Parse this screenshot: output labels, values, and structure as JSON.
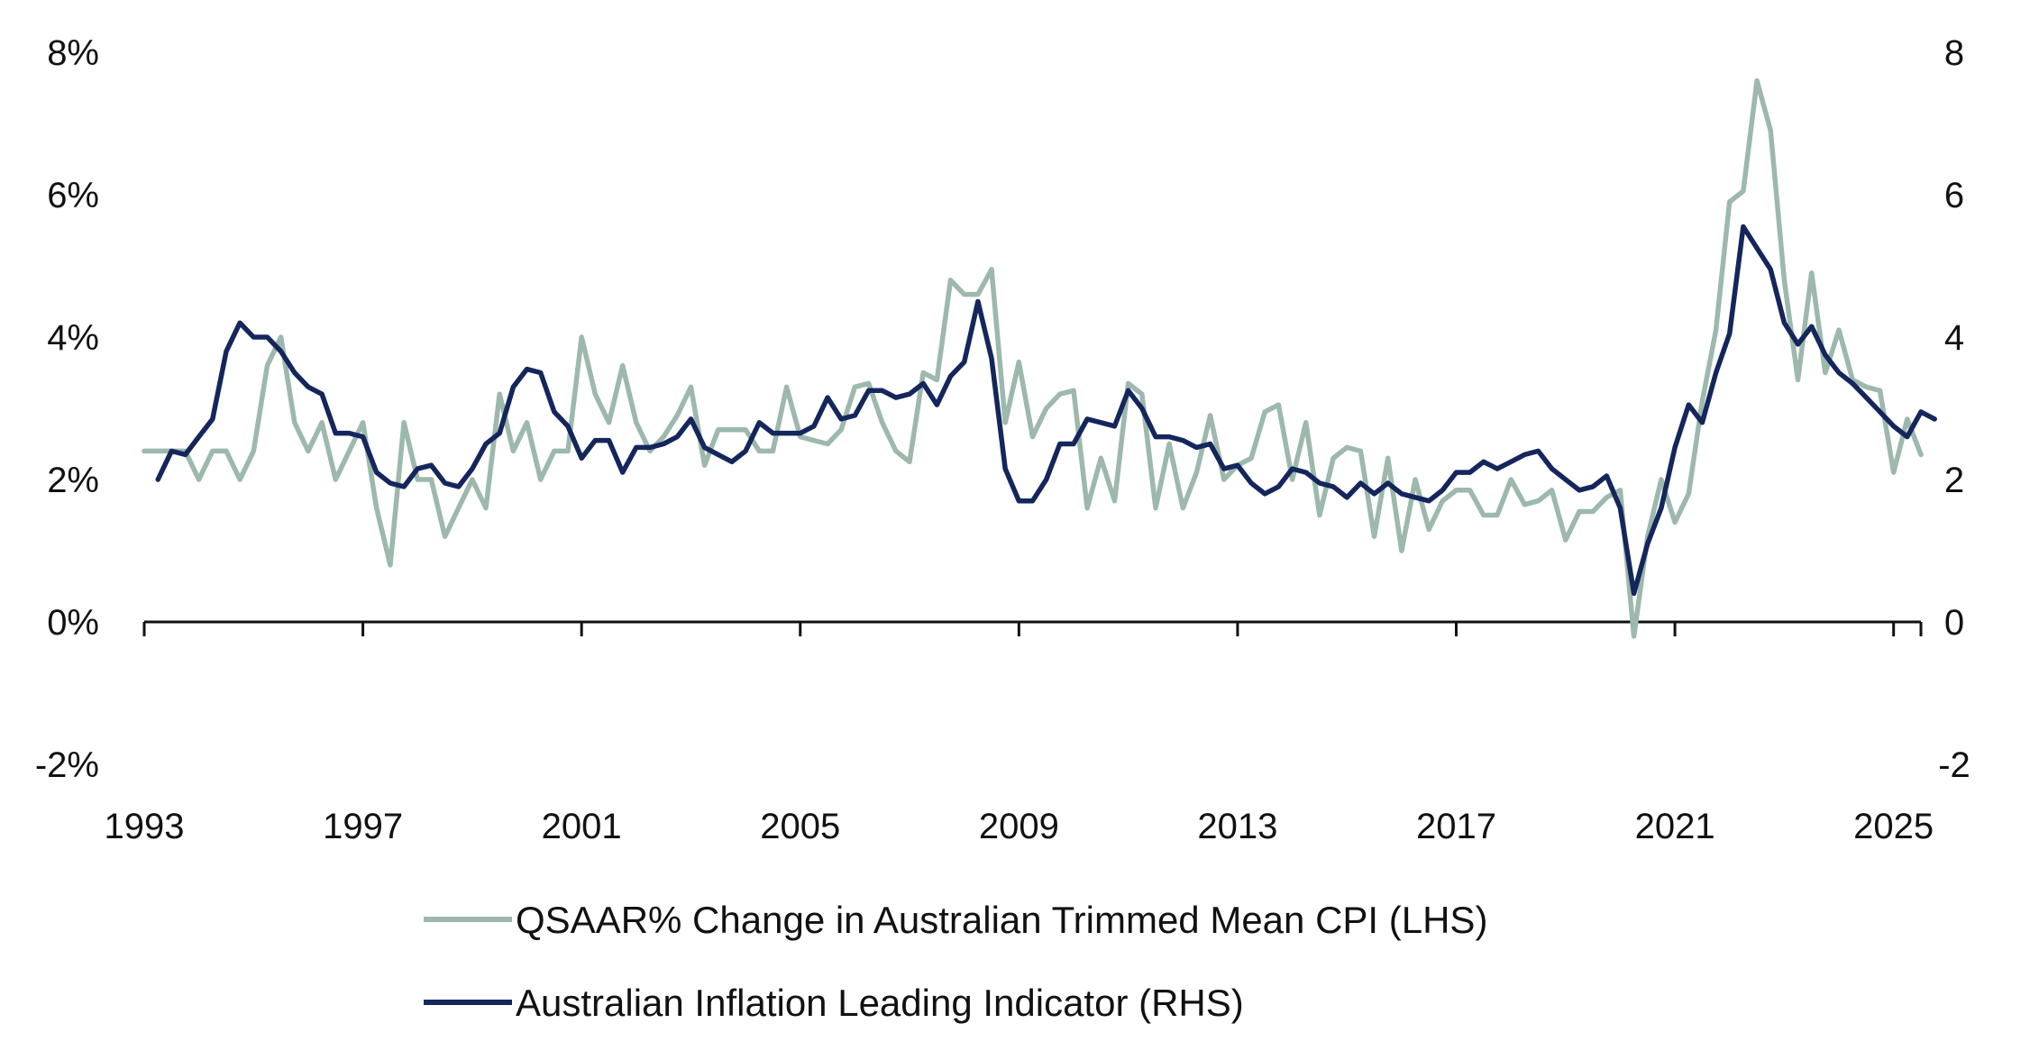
{
  "chart_data": {
    "type": "line",
    "title": "",
    "xlabel": "",
    "ylabel_left": "",
    "ylabel_right": "",
    "xlim": [
      1993,
      2025.5
    ],
    "ylim_left": [
      -2,
      8
    ],
    "ylim_right": [
      -2,
      8
    ],
    "x_ticks": [
      1993,
      1997,
      2001,
      2005,
      2009,
      2013,
      2017,
      2021,
      2025
    ],
    "x_tick_labels": [
      "1993",
      "1997",
      "2001",
      "2005",
      "2009",
      "2013",
      "2017",
      "2021",
      "2025"
    ],
    "y_left_ticks": [
      8,
      6,
      4,
      2,
      0,
      -2
    ],
    "y_left_tick_labels": [
      "8%",
      "6%",
      "4%",
      "2%",
      "0%",
      "-2%"
    ],
    "y_right_ticks": [
      8,
      6,
      4,
      2,
      0,
      -2
    ],
    "y_right_tick_labels": [
      "8",
      "6",
      "4",
      "2",
      "0",
      "-2"
    ],
    "legend_position": "bottom",
    "series": [
      {
        "name": "QSAAR% Change in Australian Trimmed Mean CPI (LHS)",
        "axis": "left",
        "color": "#9db8ac",
        "points": [
          [
            1993.0,
            2.4
          ],
          [
            1993.25,
            2.4
          ],
          [
            1993.5,
            2.4
          ],
          [
            1993.75,
            2.4
          ],
          [
            1994.0,
            2.0
          ],
          [
            1994.25,
            2.4
          ],
          [
            1994.5,
            2.4
          ],
          [
            1994.75,
            2.0
          ],
          [
            1995.0,
            2.4
          ],
          [
            1995.25,
            3.6
          ],
          [
            1995.5,
            4.0
          ],
          [
            1995.75,
            2.8
          ],
          [
            1996.0,
            2.4
          ],
          [
            1996.25,
            2.8
          ],
          [
            1996.5,
            2.0
          ],
          [
            1996.75,
            2.4
          ],
          [
            1997.0,
            2.8
          ],
          [
            1997.25,
            1.6
          ],
          [
            1997.5,
            0.8
          ],
          [
            1997.75,
            2.8
          ],
          [
            1998.0,
            2.0
          ],
          [
            1998.25,
            2.0
          ],
          [
            1998.5,
            1.2
          ],
          [
            1998.75,
            1.6
          ],
          [
            1999.0,
            2.0
          ],
          [
            1999.25,
            1.6
          ],
          [
            1999.5,
            3.2
          ],
          [
            1999.75,
            2.4
          ],
          [
            2000.0,
            2.8
          ],
          [
            2000.25,
            2.0
          ],
          [
            2000.5,
            2.4
          ],
          [
            2000.75,
            2.4
          ],
          [
            2001.0,
            4.0
          ],
          [
            2001.25,
            3.2
          ],
          [
            2001.5,
            2.8
          ],
          [
            2001.75,
            3.6
          ],
          [
            2002.0,
            2.8
          ],
          [
            2002.25,
            2.4
          ],
          [
            2002.5,
            2.6
          ],
          [
            2002.75,
            2.9
          ],
          [
            2003.0,
            3.3
          ],
          [
            2003.25,
            2.2
          ],
          [
            2003.5,
            2.7
          ],
          [
            2003.75,
            2.7
          ],
          [
            2004.0,
            2.7
          ],
          [
            2004.25,
            2.4
          ],
          [
            2004.5,
            2.4
          ],
          [
            2004.75,
            3.3
          ],
          [
            2005.0,
            2.6
          ],
          [
            2005.25,
            2.55
          ],
          [
            2005.5,
            2.5
          ],
          [
            2005.75,
            2.7
          ],
          [
            2006.0,
            3.3
          ],
          [
            2006.25,
            3.35
          ],
          [
            2006.5,
            2.8
          ],
          [
            2006.75,
            2.4
          ],
          [
            2007.0,
            2.25
          ],
          [
            2007.25,
            3.5
          ],
          [
            2007.5,
            3.4
          ],
          [
            2007.75,
            4.8
          ],
          [
            2008.0,
            4.6
          ],
          [
            2008.25,
            4.6
          ],
          [
            2008.5,
            4.95
          ],
          [
            2008.75,
            2.8
          ],
          [
            2009.0,
            3.65
          ],
          [
            2009.25,
            2.6
          ],
          [
            2009.5,
            3.0
          ],
          [
            2009.75,
            3.2
          ],
          [
            2010.0,
            3.25
          ],
          [
            2010.25,
            1.6
          ],
          [
            2010.5,
            2.3
          ],
          [
            2010.75,
            1.7
          ],
          [
            2011.0,
            3.35
          ],
          [
            2011.25,
            3.2
          ],
          [
            2011.5,
            1.6
          ],
          [
            2011.75,
            2.5
          ],
          [
            2012.0,
            1.6
          ],
          [
            2012.25,
            2.1
          ],
          [
            2012.5,
            2.9
          ],
          [
            2012.75,
            2.0
          ],
          [
            2013.0,
            2.2
          ],
          [
            2013.25,
            2.3
          ],
          [
            2013.5,
            2.95
          ],
          [
            2013.75,
            3.05
          ],
          [
            2014.0,
            2.0
          ],
          [
            2014.25,
            2.8
          ],
          [
            2014.5,
            1.5
          ],
          [
            2014.75,
            2.3
          ],
          [
            2015.0,
            2.45
          ],
          [
            2015.25,
            2.4
          ],
          [
            2015.5,
            1.2
          ],
          [
            2015.75,
            2.3
          ],
          [
            2016.0,
            1.0
          ],
          [
            2016.25,
            2.0
          ],
          [
            2016.5,
            1.3
          ],
          [
            2016.75,
            1.7
          ],
          [
            2017.0,
            1.85
          ],
          [
            2017.25,
            1.85
          ],
          [
            2017.5,
            1.5
          ],
          [
            2017.75,
            1.5
          ],
          [
            2018.0,
            2.0
          ],
          [
            2018.25,
            1.65
          ],
          [
            2018.5,
            1.7
          ],
          [
            2018.75,
            1.85
          ],
          [
            2019.0,
            1.15
          ],
          [
            2019.25,
            1.55
          ],
          [
            2019.5,
            1.55
          ],
          [
            2019.75,
            1.75
          ],
          [
            2020.0,
            1.85
          ],
          [
            2020.25,
            -0.2
          ],
          [
            2020.5,
            1.2
          ],
          [
            2020.75,
            2.0
          ],
          [
            2021.0,
            1.4
          ],
          [
            2021.25,
            1.8
          ],
          [
            2021.5,
            3.1
          ],
          [
            2021.75,
            4.1
          ],
          [
            2022.0,
            5.9
          ],
          [
            2022.25,
            6.05
          ],
          [
            2022.5,
            7.6
          ],
          [
            2022.75,
            6.9
          ],
          [
            2023.0,
            4.8
          ],
          [
            2023.25,
            3.4
          ],
          [
            2023.5,
            4.9
          ],
          [
            2023.75,
            3.5
          ],
          [
            2024.0,
            4.1
          ],
          [
            2024.25,
            3.4
          ],
          [
            2024.5,
            3.3
          ],
          [
            2024.75,
            3.25
          ],
          [
            2025.0,
            2.1
          ],
          [
            2025.25,
            2.85
          ],
          [
            2025.5,
            2.35
          ]
        ]
      },
      {
        "name": "Australian Inflation Leading Indicator (RHS)",
        "axis": "right",
        "color": "#14265c",
        "points": [
          [
            1993.25,
            2.0
          ],
          [
            1993.5,
            2.4
          ],
          [
            1993.75,
            2.35
          ],
          [
            1994.0,
            2.6
          ],
          [
            1994.25,
            2.85
          ],
          [
            1994.5,
            3.8
          ],
          [
            1994.75,
            4.2
          ],
          [
            1995.0,
            4.0
          ],
          [
            1995.25,
            4.0
          ],
          [
            1995.5,
            3.8
          ],
          [
            1995.75,
            3.5
          ],
          [
            1996.0,
            3.3
          ],
          [
            1996.25,
            3.2
          ],
          [
            1996.5,
            2.65
          ],
          [
            1996.75,
            2.65
          ],
          [
            1997.0,
            2.6
          ],
          [
            1997.25,
            2.1
          ],
          [
            1997.5,
            1.95
          ],
          [
            1997.75,
            1.9
          ],
          [
            1998.0,
            2.15
          ],
          [
            1998.25,
            2.2
          ],
          [
            1998.5,
            1.95
          ],
          [
            1998.75,
            1.9
          ],
          [
            1999.0,
            2.15
          ],
          [
            1999.25,
            2.5
          ],
          [
            1999.5,
            2.65
          ],
          [
            1999.75,
            3.3
          ],
          [
            2000.0,
            3.55
          ],
          [
            2000.25,
            3.5
          ],
          [
            2000.5,
            2.95
          ],
          [
            2000.75,
            2.75
          ],
          [
            2001.0,
            2.3
          ],
          [
            2001.25,
            2.55
          ],
          [
            2001.5,
            2.55
          ],
          [
            2001.75,
            2.1
          ],
          [
            2002.0,
            2.45
          ],
          [
            2002.25,
            2.45
          ],
          [
            2002.5,
            2.5
          ],
          [
            2002.75,
            2.6
          ],
          [
            2003.0,
            2.85
          ],
          [
            2003.25,
            2.45
          ],
          [
            2003.5,
            2.35
          ],
          [
            2003.75,
            2.25
          ],
          [
            2004.0,
            2.4
          ],
          [
            2004.25,
            2.8
          ],
          [
            2004.5,
            2.65
          ],
          [
            2004.75,
            2.65
          ],
          [
            2005.0,
            2.65
          ],
          [
            2005.25,
            2.75
          ],
          [
            2005.5,
            3.15
          ],
          [
            2005.75,
            2.85
          ],
          [
            2006.0,
            2.9
          ],
          [
            2006.25,
            3.25
          ],
          [
            2006.5,
            3.25
          ],
          [
            2006.75,
            3.15
          ],
          [
            2007.0,
            3.2
          ],
          [
            2007.25,
            3.35
          ],
          [
            2007.5,
            3.05
          ],
          [
            2007.75,
            3.45
          ],
          [
            2008.0,
            3.65
          ],
          [
            2008.25,
            4.5
          ],
          [
            2008.5,
            3.7
          ],
          [
            2008.75,
            2.15
          ],
          [
            2009.0,
            1.7
          ],
          [
            2009.25,
            1.7
          ],
          [
            2009.5,
            2.0
          ],
          [
            2009.75,
            2.5
          ],
          [
            2010.0,
            2.5
          ],
          [
            2010.25,
            2.85
          ],
          [
            2010.5,
            2.8
          ],
          [
            2010.75,
            2.75
          ],
          [
            2011.0,
            3.25
          ],
          [
            2011.25,
            3.0
          ],
          [
            2011.5,
            2.6
          ],
          [
            2011.75,
            2.6
          ],
          [
            2012.0,
            2.55
          ],
          [
            2012.25,
            2.45
          ],
          [
            2012.5,
            2.5
          ],
          [
            2012.75,
            2.15
          ],
          [
            2013.0,
            2.2
          ],
          [
            2013.25,
            1.95
          ],
          [
            2013.5,
            1.8
          ],
          [
            2013.75,
            1.9
          ],
          [
            2014.0,
            2.15
          ],
          [
            2014.25,
            2.1
          ],
          [
            2014.5,
            1.95
          ],
          [
            2014.75,
            1.9
          ],
          [
            2015.0,
            1.75
          ],
          [
            2015.25,
            1.95
          ],
          [
            2015.5,
            1.8
          ],
          [
            2015.75,
            1.95
          ],
          [
            2016.0,
            1.8
          ],
          [
            2016.25,
            1.75
          ],
          [
            2016.5,
            1.7
          ],
          [
            2016.75,
            1.85
          ],
          [
            2017.0,
            2.1
          ],
          [
            2017.25,
            2.1
          ],
          [
            2017.5,
            2.25
          ],
          [
            2017.75,
            2.15
          ],
          [
            2018.0,
            2.25
          ],
          [
            2018.25,
            2.35
          ],
          [
            2018.5,
            2.4
          ],
          [
            2018.75,
            2.15
          ],
          [
            2019.0,
            2.0
          ],
          [
            2019.25,
            1.85
          ],
          [
            2019.5,
            1.9
          ],
          [
            2019.75,
            2.05
          ],
          [
            2020.0,
            1.6
          ],
          [
            2020.25,
            0.4
          ],
          [
            2020.5,
            1.1
          ],
          [
            2020.75,
            1.6
          ],
          [
            2021.0,
            2.45
          ],
          [
            2021.25,
            3.05
          ],
          [
            2021.5,
            2.8
          ],
          [
            2021.75,
            3.5
          ],
          [
            2022.0,
            4.05
          ],
          [
            2022.25,
            5.55
          ],
          [
            2022.5,
            5.25
          ],
          [
            2022.75,
            4.95
          ],
          [
            2023.0,
            4.2
          ],
          [
            2023.25,
            3.9
          ],
          [
            2023.5,
            4.15
          ],
          [
            2023.75,
            3.75
          ],
          [
            2024.0,
            3.5
          ],
          [
            2024.25,
            3.35
          ],
          [
            2024.5,
            3.15
          ],
          [
            2024.75,
            2.95
          ],
          [
            2025.0,
            2.75
          ],
          [
            2025.25,
            2.6
          ],
          [
            2025.5,
            2.95
          ],
          [
            2025.75,
            2.85
          ]
        ]
      }
    ]
  }
}
